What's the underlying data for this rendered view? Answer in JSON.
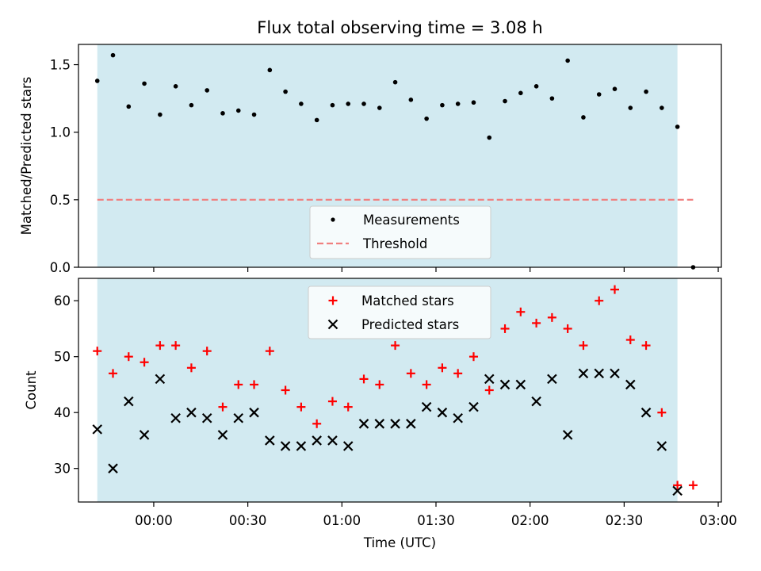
{
  "chart_data": [
    {
      "type": "scatter",
      "title": "Flux total observing time = 3.08 h",
      "xlabel": "",
      "ylabel": "Matched/Predicted stars",
      "ylim": [
        0,
        1.65
      ],
      "yticks": [
        "0.0",
        "0.5",
        "1.0",
        "1.5"
      ],
      "ytick_values": [
        0,
        0.5,
        1.0,
        1.5
      ],
      "xticks_values": [
        "00:00",
        "00:30",
        "01:00",
        "01:30",
        "02:00",
        "02:30",
        "03:00"
      ],
      "xlim": [
        "-00:24",
        "03:01"
      ],
      "shaded_interval": [
        "-00:18",
        "02:47"
      ],
      "shade_color": "#add8e6",
      "legend_position": "lower center",
      "threshold": {
        "name": "Threshold",
        "value": 0.5,
        "x_range": [
          "-00:18",
          "02:52"
        ],
        "color": "#f08080",
        "style": "dashed"
      },
      "series": [
        {
          "name": "Measurements",
          "marker": "dot",
          "color": "#000000",
          "x": [
            "-00:18",
            "-00:13",
            "-00:08",
            "-00:03",
            "00:02",
            "00:07",
            "00:12",
            "00:17",
            "00:22",
            "00:27",
            "00:32",
            "00:37",
            "00:42",
            "00:47",
            "00:52",
            "00:57",
            "01:02",
            "01:07",
            "01:12",
            "01:17",
            "01:22",
            "01:27",
            "01:32",
            "01:37",
            "01:42",
            "01:47",
            "01:52",
            "01:57",
            "02:02",
            "02:07",
            "02:12",
            "02:17",
            "02:22",
            "02:27",
            "02:32",
            "02:37",
            "02:42",
            "02:47",
            "02:52"
          ],
          "y": [
            1.38,
            1.57,
            1.19,
            1.36,
            1.13,
            1.34,
            1.2,
            1.31,
            1.14,
            1.16,
            1.13,
            1.46,
            1.3,
            1.21,
            1.09,
            1.2,
            1.21,
            1.21,
            1.18,
            1.37,
            1.24,
            1.1,
            1.2,
            1.21,
            1.22,
            0.96,
            1.23,
            1.29,
            1.34,
            1.25,
            1.53,
            1.11,
            1.28,
            1.32,
            1.18,
            1.3,
            1.18,
            1.04,
            0.0
          ]
        }
      ]
    },
    {
      "type": "scatter",
      "title": "",
      "xlabel": "Time (UTC)",
      "ylabel": "Count",
      "ylim": [
        24,
        64
      ],
      "yticks": [
        "30",
        "40",
        "50",
        "60"
      ],
      "ytick_values": [
        30,
        40,
        50,
        60
      ],
      "xticks": [
        "00:00",
        "00:30",
        "01:00",
        "01:30",
        "02:00",
        "02:30",
        "03:00"
      ],
      "xlim": [
        "-00:24",
        "03:01"
      ],
      "shaded_interval": [
        "-00:18",
        "02:47"
      ],
      "shade_color": "#add8e6",
      "legend_position": "upper center",
      "series": [
        {
          "name": "Matched stars",
          "marker": "plus",
          "color": "#ff0000",
          "x": [
            "-00:18",
            "-00:13",
            "-00:08",
            "-00:03",
            "00:02",
            "00:07",
            "00:12",
            "00:17",
            "00:22",
            "00:27",
            "00:32",
            "00:37",
            "00:42",
            "00:47",
            "00:52",
            "00:57",
            "01:02",
            "01:07",
            "01:12",
            "01:17",
            "01:22",
            "01:27",
            "01:32",
            "01:37",
            "01:42",
            "01:47",
            "01:52",
            "01:57",
            "02:02",
            "02:07",
            "02:12",
            "02:17",
            "02:22",
            "02:27",
            "02:32",
            "02:37",
            "02:42",
            "02:47",
            "02:52"
          ],
          "y": [
            51,
            47,
            50,
            49,
            52,
            52,
            48,
            51,
            41,
            45,
            45,
            51,
            44,
            41,
            38,
            42,
            41,
            46,
            45,
            52,
            47,
            45,
            48,
            47,
            50,
            44,
            55,
            58,
            56,
            57,
            55,
            52,
            60,
            62,
            53,
            52,
            40,
            27,
            27
          ]
        },
        {
          "name": "Predicted stars",
          "marker": "x",
          "color": "#000000",
          "x": [
            "-00:18",
            "-00:13",
            "-00:08",
            "-00:03",
            "00:02",
            "00:07",
            "00:12",
            "00:17",
            "00:22",
            "00:27",
            "00:32",
            "00:37",
            "00:42",
            "00:47",
            "00:52",
            "00:57",
            "01:02",
            "01:07",
            "01:12",
            "01:17",
            "01:22",
            "01:27",
            "01:32",
            "01:37",
            "01:42",
            "01:47",
            "01:52",
            "01:57",
            "02:02",
            "02:07",
            "02:12",
            "02:17",
            "02:22",
            "02:27",
            "02:32",
            "02:37",
            "02:42",
            "02:47"
          ],
          "y": [
            37,
            30,
            42,
            36,
            46,
            39,
            40,
            39,
            36,
            39,
            40,
            35,
            34,
            34,
            35,
            35,
            34,
            38,
            38,
            38,
            38,
            41,
            40,
            39,
            41,
            46,
            45,
            45,
            42,
            46,
            36,
            47,
            47,
            47,
            45,
            40,
            34,
            26
          ]
        }
      ]
    }
  ]
}
